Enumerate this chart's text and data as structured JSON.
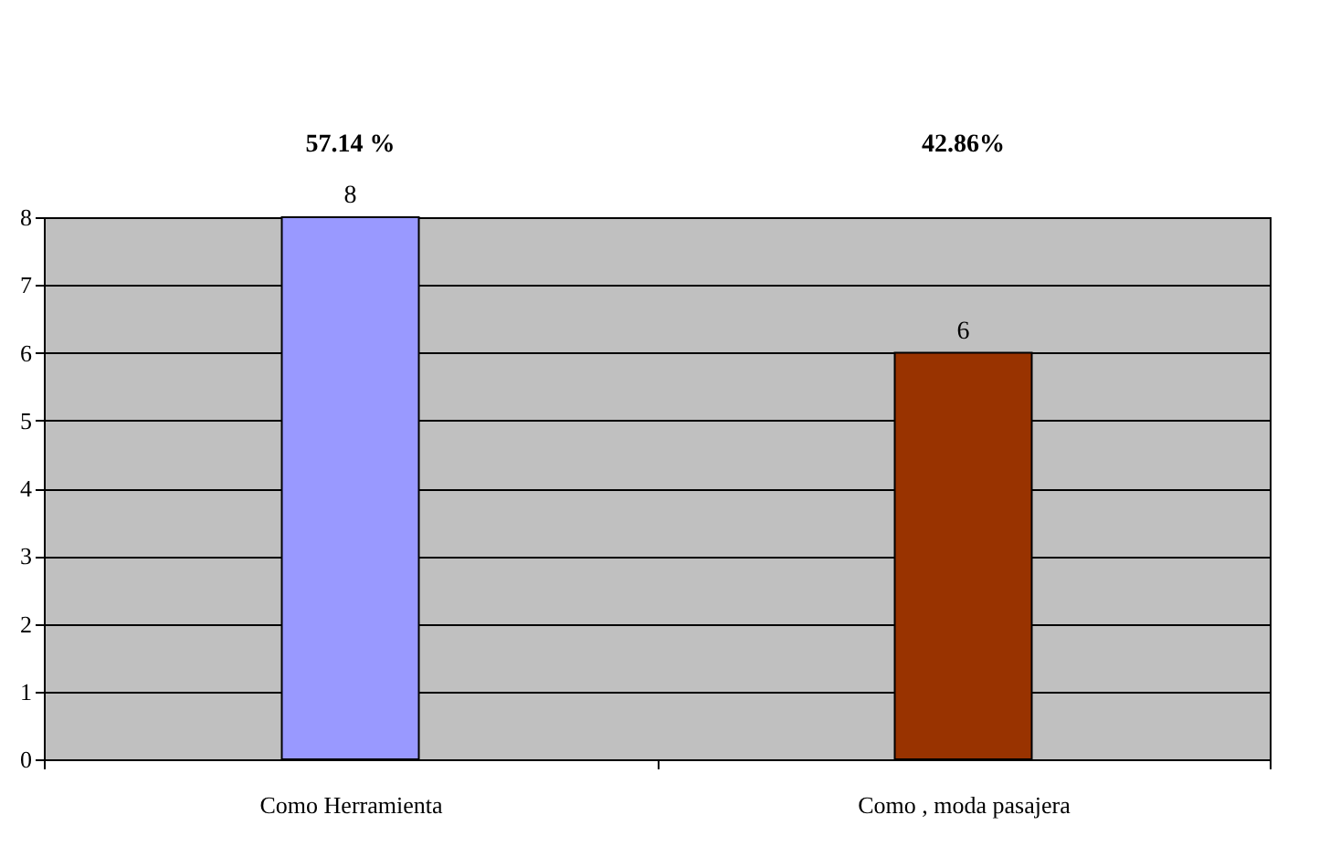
{
  "chart_data": {
    "type": "bar",
    "categories": [
      "Como Herramienta",
      "Como , moda pasajera"
    ],
    "values": [
      8,
      6
    ],
    "colors": [
      "#9999ff",
      "#993300"
    ],
    "ylim": [
      0,
      8
    ],
    "yticks": [
      0,
      1,
      2,
      3,
      4,
      5,
      6,
      7,
      8
    ],
    "grid": "y",
    "data_labels": true,
    "annotations": [
      "57.14 %",
      "42.86%"
    ]
  }
}
